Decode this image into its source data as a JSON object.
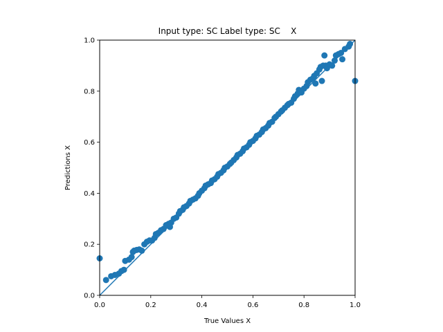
{
  "chart_data": {
    "type": "scatter",
    "title": "Input type: SC Label type: SC    X",
    "xlabel": "True Values X",
    "ylabel": "Predictions X",
    "xlim": [
      0.0,
      1.0
    ],
    "ylim": [
      0.0,
      1.0
    ],
    "xticks": [
      "0.0",
      "0.2",
      "0.4",
      "0.6",
      "0.8",
      "1.0"
    ],
    "yticks": [
      "0.0",
      "0.2",
      "0.4",
      "0.6",
      "0.8",
      "1.0"
    ],
    "grid": false,
    "legend": "none",
    "point_color": "#1f77b4",
    "reference_line": {
      "x": [
        0.0,
        1.0
      ],
      "y": [
        0.0,
        1.0
      ],
      "color": "#1f77b4"
    },
    "points": [
      [
        0.0,
        0.145
      ],
      [
        0.025,
        0.06
      ],
      [
        0.045,
        0.075
      ],
      [
        0.06,
        0.08
      ],
      [
        0.075,
        0.085
      ],
      [
        0.085,
        0.095
      ],
      [
        0.095,
        0.1
      ],
      [
        0.1,
        0.135
      ],
      [
        0.115,
        0.14
      ],
      [
        0.125,
        0.15
      ],
      [
        0.13,
        0.17
      ],
      [
        0.135,
        0.175
      ],
      [
        0.145,
        0.178
      ],
      [
        0.155,
        0.18
      ],
      [
        0.165,
        0.175
      ],
      [
        0.175,
        0.2
      ],
      [
        0.185,
        0.21
      ],
      [
        0.195,
        0.215
      ],
      [
        0.205,
        0.215
      ],
      [
        0.215,
        0.225
      ],
      [
        0.22,
        0.24
      ],
      [
        0.23,
        0.245
      ],
      [
        0.24,
        0.255
      ],
      [
        0.25,
        0.26
      ],
      [
        0.26,
        0.275
      ],
      [
        0.27,
        0.28
      ],
      [
        0.275,
        0.268
      ],
      [
        0.28,
        0.285
      ],
      [
        0.29,
        0.3
      ],
      [
        0.3,
        0.305
      ],
      [
        0.31,
        0.32
      ],
      [
        0.315,
        0.33
      ],
      [
        0.325,
        0.335
      ],
      [
        0.33,
        0.345
      ],
      [
        0.34,
        0.35
      ],
      [
        0.35,
        0.36
      ],
      [
        0.355,
        0.37
      ],
      [
        0.365,
        0.375
      ],
      [
        0.375,
        0.38
      ],
      [
        0.385,
        0.39
      ],
      [
        0.39,
        0.4
      ],
      [
        0.4,
        0.41
      ],
      [
        0.41,
        0.42
      ],
      [
        0.415,
        0.43
      ],
      [
        0.425,
        0.435
      ],
      [
        0.435,
        0.44
      ],
      [
        0.44,
        0.45
      ],
      [
        0.45,
        0.455
      ],
      [
        0.46,
        0.465
      ],
      [
        0.465,
        0.475
      ],
      [
        0.475,
        0.48
      ],
      [
        0.485,
        0.49
      ],
      [
        0.49,
        0.5
      ],
      [
        0.5,
        0.505
      ],
      [
        0.51,
        0.515
      ],
      [
        0.515,
        0.52
      ],
      [
        0.525,
        0.53
      ],
      [
        0.535,
        0.54
      ],
      [
        0.54,
        0.55
      ],
      [
        0.55,
        0.555
      ],
      [
        0.56,
        0.565
      ],
      [
        0.565,
        0.575
      ],
      [
        0.575,
        0.58
      ],
      [
        0.585,
        0.59
      ],
      [
        0.59,
        0.6
      ],
      [
        0.6,
        0.605
      ],
      [
        0.61,
        0.615
      ],
      [
        0.615,
        0.625
      ],
      [
        0.625,
        0.63
      ],
      [
        0.635,
        0.64
      ],
      [
        0.64,
        0.65
      ],
      [
        0.65,
        0.655
      ],
      [
        0.66,
        0.665
      ],
      [
        0.665,
        0.675
      ],
      [
        0.675,
        0.68
      ],
      [
        0.685,
        0.695
      ],
      [
        0.69,
        0.7
      ],
      [
        0.7,
        0.71
      ],
      [
        0.71,
        0.72
      ],
      [
        0.715,
        0.725
      ],
      [
        0.725,
        0.735
      ],
      [
        0.735,
        0.745
      ],
      [
        0.74,
        0.75
      ],
      [
        0.75,
        0.755
      ],
      [
        0.76,
        0.77
      ],
      [
        0.765,
        0.78
      ],
      [
        0.775,
        0.79
      ],
      [
        0.78,
        0.805
      ],
      [
        0.79,
        0.795
      ],
      [
        0.8,
        0.81
      ],
      [
        0.81,
        0.82
      ],
      [
        0.815,
        0.835
      ],
      [
        0.825,
        0.845
      ],
      [
        0.835,
        0.85
      ],
      [
        0.84,
        0.86
      ],
      [
        0.845,
        0.83
      ],
      [
        0.85,
        0.87
      ],
      [
        0.86,
        0.885
      ],
      [
        0.865,
        0.895
      ],
      [
        0.87,
        0.84
      ],
      [
        0.875,
        0.9
      ],
      [
        0.88,
        0.94
      ],
      [
        0.885,
        0.9
      ],
      [
        0.89,
        0.89
      ],
      [
        0.9,
        0.905
      ],
      [
        0.91,
        0.9
      ],
      [
        0.92,
        0.92
      ],
      [
        0.925,
        0.94
      ],
      [
        0.935,
        0.945
      ],
      [
        0.945,
        0.95
      ],
      [
        0.95,
        0.925
      ],
      [
        0.96,
        0.965
      ],
      [
        0.975,
        0.975
      ],
      [
        0.98,
        0.985
      ],
      [
        1.0,
        0.84
      ]
    ]
  }
}
